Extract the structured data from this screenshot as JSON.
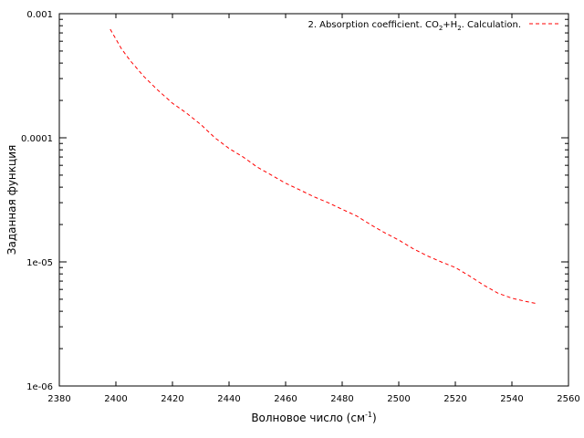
{
  "chart_data": {
    "type": "line",
    "xlabel": "Волновое число (см",
    "xlabel_sup": "-1",
    "xlabel_tail": ")",
    "ylabel": "Заданная функция",
    "xlim": [
      2380,
      2560
    ],
    "ylim": [
      1e-06,
      0.001
    ],
    "yscale": "log",
    "x_ticks": [
      2380,
      2400,
      2420,
      2440,
      2460,
      2480,
      2500,
      2520,
      2540,
      2560
    ],
    "x_tick_labels": [
      "2380",
      "2400",
      "2420",
      "2440",
      "2460",
      "2480",
      "2500",
      "2520",
      "2540",
      "2560"
    ],
    "y_ticks": [
      1e-06,
      1e-05,
      0.0001,
      0.001
    ],
    "y_tick_labels": [
      "1e-06",
      "1e-05",
      "0.0001",
      "0.001"
    ],
    "grid": false,
    "legend_position": "top-right",
    "series": [
      {
        "name_parts": [
          "2. Absorption coefficient. CO",
          "2",
          "+H",
          "2",
          ". Calculation."
        ],
        "color": "#ff0000",
        "style": "dashed",
        "x": [
          2398,
          2402,
          2405,
          2410,
          2415,
          2420,
          2425,
          2430,
          2435,
          2440,
          2445,
          2450,
          2455,
          2460,
          2465,
          2470,
          2475,
          2480,
          2485,
          2490,
          2495,
          2500,
          2505,
          2510,
          2515,
          2520,
          2525,
          2530,
          2535,
          2540,
          2545,
          2549
        ],
        "y": [
          0.00075,
          0.00052,
          0.00042,
          0.00031,
          0.00024,
          0.00019,
          0.000158,
          0.000128,
          0.0001,
          8.2e-05,
          7e-05,
          5.8e-05,
          5e-05,
          4.3e-05,
          3.8e-05,
          3.35e-05,
          3e-05,
          2.65e-05,
          2.35e-05,
          2e-05,
          1.72e-05,
          1.5e-05,
          1.28e-05,
          1.12e-05,
          1e-05,
          9e-06,
          7.7e-06,
          6.5e-06,
          5.6e-06,
          5.1e-06,
          4.8e-06,
          4.6e-06
        ]
      }
    ]
  }
}
